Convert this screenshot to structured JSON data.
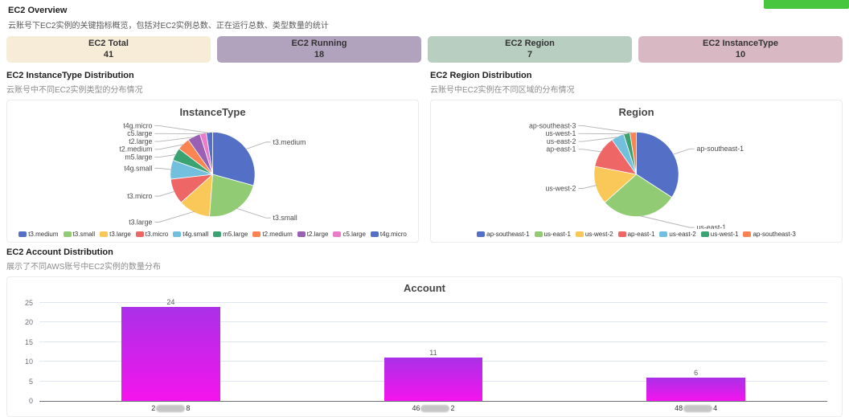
{
  "page": {
    "title": "EC2 Overview",
    "subtitle": "云账号下EC2实例的关键指标概览，包括对EC2实例总数、正在运行总数、类型数量的统计"
  },
  "top_button": {
    "color": "#49c63f",
    "label": ""
  },
  "stat_cards": [
    {
      "label": "EC2 Total",
      "value": "41",
      "bg": "#f7ecd8"
    },
    {
      "label": "EC2 Running",
      "value": "18",
      "bg": "#b1a3bd"
    },
    {
      "label": "EC2 Region",
      "value": "7",
      "bg": "#b7cec0"
    },
    {
      "label": "EC2 InstanceType",
      "value": "10",
      "bg": "#d8b9c3"
    }
  ],
  "sections": {
    "instance_type": {
      "title": "EC2 InstanceType Distribution",
      "subtitle": "云账号中不同EC2实例类型的分布情况"
    },
    "region": {
      "title": "EC2 Region Distribution",
      "subtitle": "云账号中EC2实例在不同区域的分布情况"
    },
    "account": {
      "title": "EC2 Account Distribution",
      "subtitle": "展示了不同AWS账号中EC2实例的数量分布"
    }
  },
  "chart_data": [
    {
      "type": "pie",
      "title": "InstanceType",
      "labels": [
        "t3.medium",
        "t3.small",
        "t3.large",
        "t3.micro",
        "t4g.small",
        "m5.large",
        "t2.medium",
        "t2.large",
        "c5.large",
        "t4g.micro"
      ],
      "values": [
        12,
        9,
        5,
        4,
        3,
        2,
        2,
        2,
        1,
        1
      ],
      "total": 41,
      "colors": [
        "#5470c6",
        "#91cc75",
        "#fac858",
        "#ee6666",
        "#73c0de",
        "#3ba272",
        "#fc8452",
        "#9a60b4",
        "#ea7ccc",
        "#5470c6"
      ],
      "legend_position": "bottom"
    },
    {
      "type": "pie",
      "title": "Region",
      "labels": [
        "ap-southeast-1",
        "us-east-1",
        "us-west-2",
        "ap-east-1",
        "us-east-2",
        "us-west-1",
        "ap-southeast-3"
      ],
      "values": [
        14,
        12,
        6,
        5,
        2,
        1,
        1
      ],
      "total": 41,
      "colors": [
        "#5470c6",
        "#91cc75",
        "#fac858",
        "#ee6666",
        "#73c0de",
        "#3ba272",
        "#fc8452"
      ],
      "legend_position": "bottom"
    },
    {
      "type": "bar",
      "title": "Account",
      "categories": [
        {
          "prefix": "2",
          "redacted": true,
          "suffix": "8"
        },
        {
          "prefix": "46",
          "redacted": true,
          "suffix": "2"
        },
        {
          "prefix": "48",
          "redacted": true,
          "suffix": "4"
        }
      ],
      "values": [
        24,
        11,
        6
      ],
      "yticks": [
        0,
        5,
        10,
        15,
        20,
        25
      ],
      "ylim": [
        0,
        25
      ],
      "grid": true,
      "bar_gradient": [
        "#aa30e8",
        "#f414ec"
      ],
      "value_label_color": "#5e5e5e"
    }
  ]
}
